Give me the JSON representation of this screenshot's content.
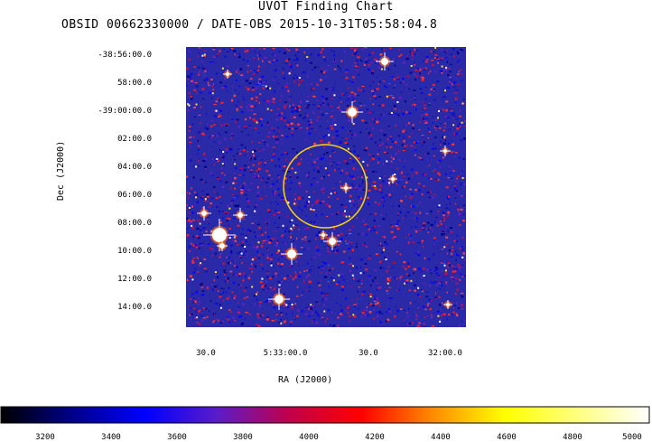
{
  "title": "UVOT Finding Chart",
  "subtitle": "OBSID 00662330000 / DATE-OBS 2015-10-31T05:58:04.8",
  "axes": {
    "dec_label": "Dec (J2000)",
    "ra_label": "RA (J2000)",
    "dec_ticks": [
      "-38:56:00.0",
      "58:00.0",
      "-39:00:00.0",
      "02:00.0",
      "04:00.0",
      "06:00.0",
      "08:00.0",
      "10:00.0",
      "12:00.0",
      "14:00.0"
    ],
    "ra_ticks": [
      "30.0",
      "5:33:00.0",
      "30.0",
      "32:00.0"
    ]
  },
  "colorbar": {
    "ticks": [
      "3200",
      "3400",
      "3600",
      "3800",
      "4000",
      "4200",
      "4400",
      "4600",
      "4800",
      "5000"
    ],
    "colors": [
      "#000000",
      "#00008b",
      "#0000ff",
      "#5a1cc8",
      "#c0004a",
      "#ff0000",
      "#ff8c00",
      "#ffff00",
      "#ffff80",
      "#ffffff"
    ]
  },
  "image": {
    "marker_color": "#ffd700",
    "background_color": "#2a2aa8"
  }
}
